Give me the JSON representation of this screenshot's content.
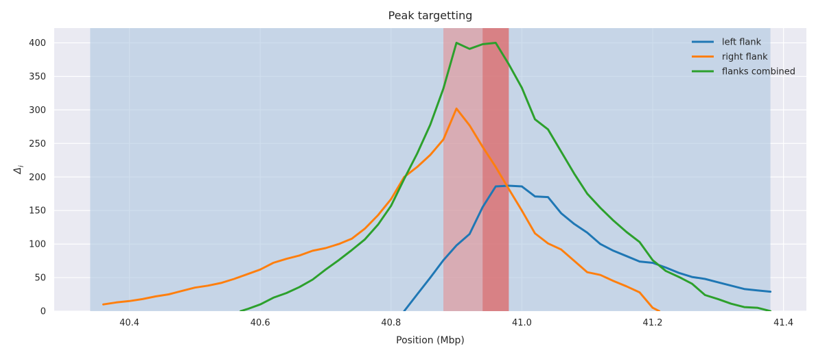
{
  "chart_data": {
    "type": "line",
    "title": "Peak targetting",
    "xlabel": "Position (Mbp)",
    "ylabel": "Δ",
    "ylabel_subscript": "i",
    "xlim": [
      40.285,
      41.435
    ],
    "ylim": [
      0,
      422
    ],
    "xticks": [
      40.4,
      40.6,
      40.8,
      41.0,
      41.2,
      41.4
    ],
    "xtick_labels": [
      "40.4",
      "40.6",
      "40.8",
      "41.0",
      "41.2",
      "41.4"
    ],
    "yticks": [
      0,
      50,
      100,
      150,
      200,
      250,
      300,
      350,
      400
    ],
    "ytick_labels": [
      "0",
      "50",
      "100",
      "150",
      "200",
      "250",
      "300",
      "350",
      "400"
    ],
    "grid": true,
    "legend_position": "top-right",
    "spans": [
      {
        "x0": 40.34,
        "x1": 41.38,
        "color": "#a8c3de",
        "opacity": 0.55
      },
      {
        "x0": 40.88,
        "x1": 40.98,
        "color": "#e88a8a",
        "opacity": 0.55
      },
      {
        "x0": 40.94,
        "x1": 40.98,
        "color": "#d95f5f",
        "opacity": 0.55
      }
    ],
    "series": [
      {
        "name": "left flank",
        "color": "#1f77b4",
        "x": [
          40.82,
          40.84,
          40.86,
          40.88,
          40.9,
          40.92,
          40.94,
          40.96,
          40.98,
          41.0,
          41.02,
          41.04,
          41.06,
          41.08,
          41.1,
          41.12,
          41.14,
          41.16,
          41.18,
          41.2,
          41.22,
          41.24,
          41.26,
          41.28,
          41.3,
          41.32,
          41.34,
          41.36,
          41.38
        ],
        "y": [
          0,
          25,
          50,
          76,
          98,
          115,
          155,
          186,
          187,
          186,
          171,
          170,
          146,
          130,
          117,
          100,
          90,
          82,
          74,
          72,
          65,
          57,
          51,
          48,
          43,
          38,
          33,
          31,
          29
        ]
      },
      {
        "name": "right flank",
        "color": "#ff7f0e",
        "x": [
          40.36,
          40.38,
          40.4,
          40.42,
          40.44,
          40.46,
          40.48,
          40.5,
          40.52,
          40.54,
          40.56,
          40.58,
          40.6,
          40.62,
          40.64,
          40.66,
          40.68,
          40.7,
          40.72,
          40.74,
          40.76,
          40.78,
          40.8,
          40.82,
          40.84,
          40.86,
          40.88,
          40.9,
          40.92,
          40.94,
          40.96,
          40.98,
          41.0,
          41.02,
          41.04,
          41.06,
          41.08,
          41.1,
          41.12,
          41.14,
          41.16,
          41.18,
          41.2,
          41.21
        ],
        "y": [
          10,
          13,
          15,
          18,
          22,
          25,
          30,
          35,
          38,
          42,
          48,
          55,
          62,
          72,
          78,
          83,
          90,
          94,
          100,
          108,
          123,
          143,
          167,
          200,
          215,
          233,
          256,
          302,
          277,
          245,
          215,
          182,
          150,
          116,
          101,
          92,
          75,
          58,
          54,
          45,
          37,
          28,
          5,
          0
        ]
      },
      {
        "name": "flanks combined",
        "color": "#2ca02c",
        "x": [
          40.57,
          40.58,
          40.6,
          40.62,
          40.64,
          40.66,
          40.68,
          40.7,
          40.72,
          40.74,
          40.76,
          40.78,
          40.8,
          40.82,
          40.84,
          40.86,
          40.88,
          40.9,
          40.92,
          40.94,
          40.96,
          40.98,
          41.0,
          41.02,
          41.04,
          41.06,
          41.08,
          41.1,
          41.12,
          41.14,
          41.16,
          41.18,
          41.2,
          41.22,
          41.24,
          41.26,
          41.28,
          41.3,
          41.32,
          41.34,
          41.36,
          41.38
        ],
        "y": [
          0,
          3,
          10,
          20,
          27,
          36,
          47,
          62,
          76,
          91,
          107,
          129,
          157,
          197,
          235,
          278,
          332,
          400,
          391,
          398,
          400,
          368,
          333,
          286,
          271,
          238,
          205,
          175,
          154,
          135,
          118,
          103,
          76,
          60,
          51,
          41,
          24,
          18,
          11,
          6,
          5,
          0
        ]
      }
    ]
  }
}
